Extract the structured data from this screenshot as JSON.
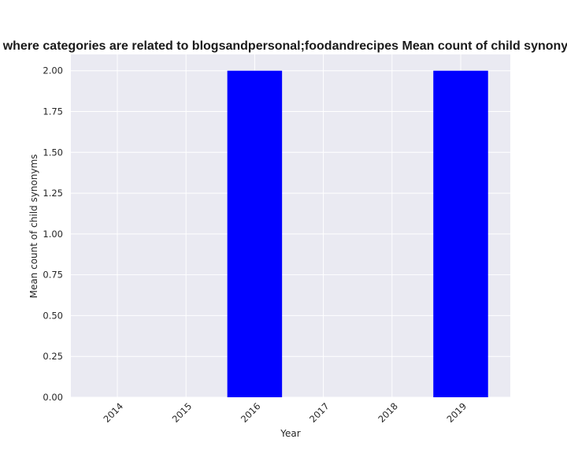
{
  "chart_data": {
    "type": "bar",
    "title": "Percentage of sites where categories are related to blogsandpersonal;foodandrecipes Mean count of child synonyms in privacy policies",
    "xlabel": "Year",
    "ylabel": "Mean count of child synonyms",
    "categories": [
      "2014",
      "2015",
      "2016",
      "2017",
      "2018",
      "2019"
    ],
    "values": [
      0,
      0,
      2.0,
      0,
      0,
      2.0
    ],
    "ylim": [
      0,
      2.1
    ],
    "yticks": [
      "0.00",
      "0.25",
      "0.50",
      "0.75",
      "1.00",
      "1.25",
      "1.50",
      "1.75",
      "2.00"
    ],
    "grid": true,
    "bar_color": "#0000ff",
    "background_color": "#eaeaf2",
    "grid_color": "#ffffff"
  }
}
